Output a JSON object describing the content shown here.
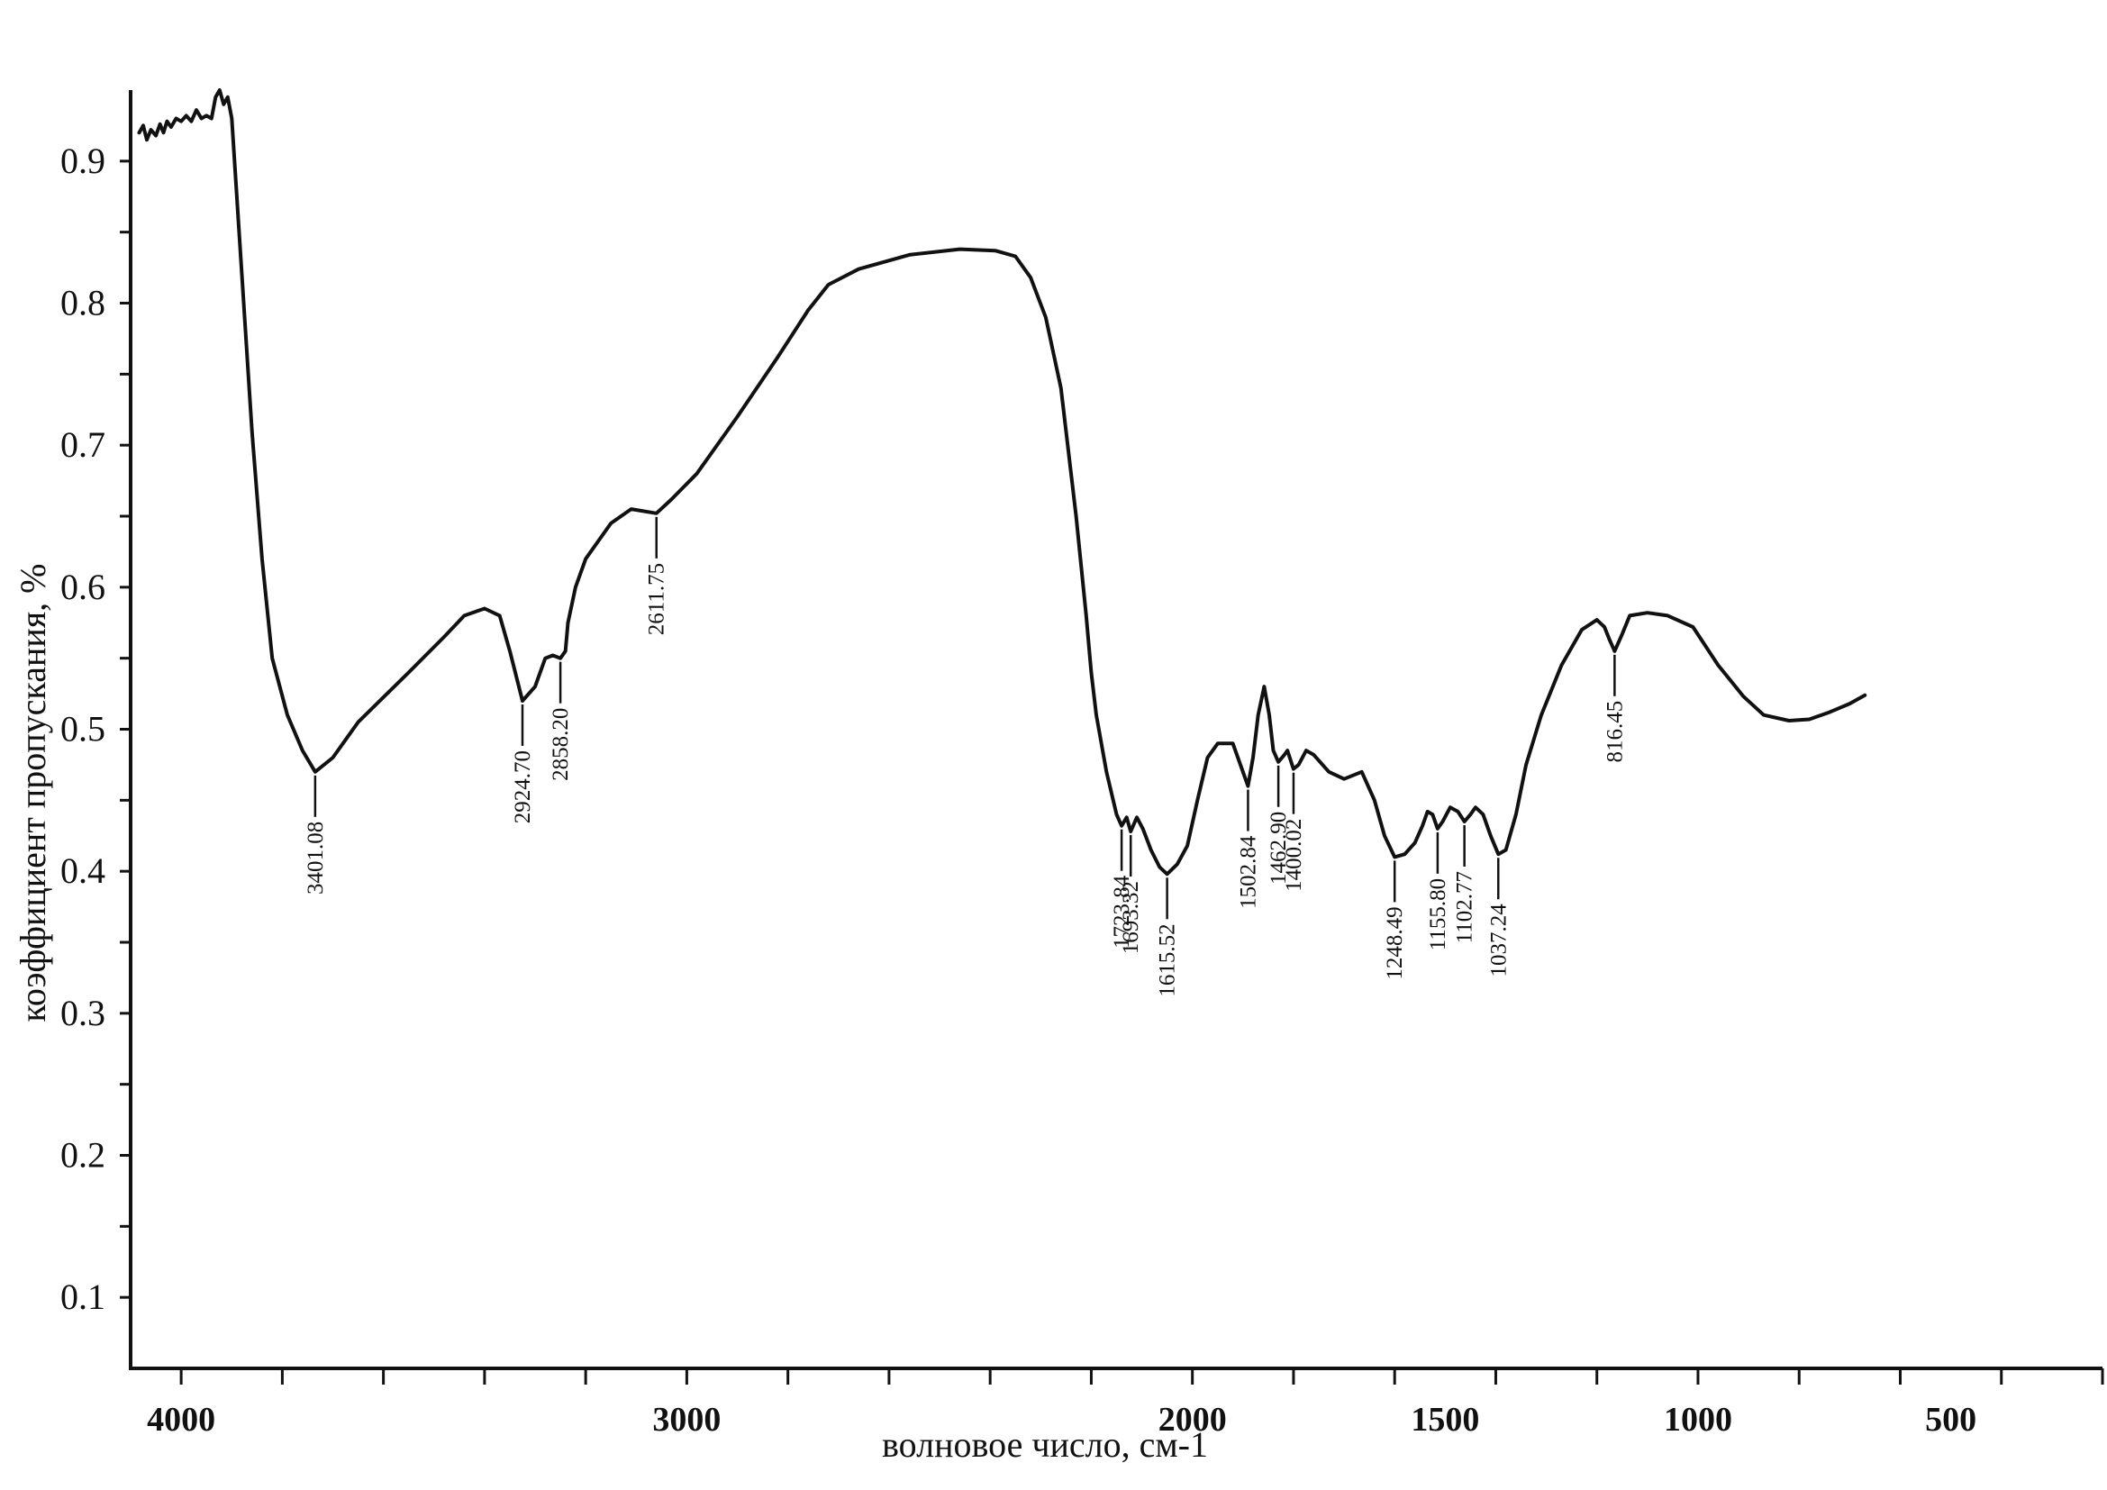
{
  "chart_data": {
    "type": "line",
    "title": "",
    "xlabel": "волновое число, см-1",
    "ylabel": "коэффициент пропускания, %",
    "xlim": [
      4100,
      200
    ],
    "ylim": [
      0.05,
      0.95
    ],
    "xticks": [
      {
        "value": 4000,
        "label": "4000"
      },
      {
        "value": 3000,
        "label": "3000"
      },
      {
        "value": 2000,
        "label": "2000"
      },
      {
        "value": 1500,
        "label": "1500"
      },
      {
        "value": 1000,
        "label": "1000"
      },
      {
        "value": 500,
        "label": "500"
      }
    ],
    "xminor": [
      4000,
      3800,
      3600,
      3400,
      3200,
      3000,
      2800,
      2600,
      2400,
      2200,
      2000,
      1800,
      1600,
      1400,
      1200,
      1000,
      800,
      600,
      400,
      200
    ],
    "yticks": [
      {
        "value": 0.1,
        "label": "0.1"
      },
      {
        "value": 0.2,
        "label": "0.2"
      },
      {
        "value": 0.3,
        "label": "0.3"
      },
      {
        "value": 0.4,
        "label": "0.4"
      },
      {
        "value": 0.5,
        "label": "0.5"
      },
      {
        "value": 0.6,
        "label": "0.6"
      },
      {
        "value": 0.7,
        "label": "0.7"
      },
      {
        "value": 0.8,
        "label": "0.8"
      },
      {
        "value": 0.9,
        "label": "0.9"
      }
    ],
    "yminor": [
      0.1,
      0.15,
      0.2,
      0.25,
      0.3,
      0.35,
      0.4,
      0.45,
      0.5,
      0.55,
      0.6,
      0.65,
      0.7,
      0.75,
      0.8,
      0.85,
      0.9
    ],
    "grid": false,
    "series": [
      {
        "color": "#111111",
        "points": [
          [
            4083,
            0.92
          ],
          [
            4075,
            0.925
          ],
          [
            4068,
            0.915
          ],
          [
            4060,
            0.922
          ],
          [
            4050,
            0.918
          ],
          [
            4042,
            0.926
          ],
          [
            4035,
            0.92
          ],
          [
            4028,
            0.928
          ],
          [
            4020,
            0.924
          ],
          [
            4010,
            0.93
          ],
          [
            4000,
            0.928
          ],
          [
            3990,
            0.932
          ],
          [
            3980,
            0.928
          ],
          [
            3970,
            0.936
          ],
          [
            3960,
            0.93
          ],
          [
            3950,
            0.932
          ],
          [
            3940,
            0.93
          ],
          [
            3932,
            0.945
          ],
          [
            3924,
            0.95
          ],
          [
            3916,
            0.94
          ],
          [
            3908,
            0.945
          ],
          [
            3900,
            0.93
          ],
          [
            3880,
            0.82
          ],
          [
            3860,
            0.71
          ],
          [
            3840,
            0.62
          ],
          [
            3820,
            0.55
          ],
          [
            3790,
            0.51
          ],
          [
            3760,
            0.485
          ],
          [
            3735,
            0.47
          ],
          [
            3700,
            0.48
          ],
          [
            3650,
            0.505
          ],
          [
            3550,
            0.54
          ],
          [
            3480,
            0.565
          ],
          [
            3440,
            0.58
          ],
          [
            3400,
            0.585
          ],
          [
            3370,
            0.58
          ],
          [
            3350,
            0.555
          ],
          [
            3325,
            0.52
          ],
          [
            3300,
            0.53
          ],
          [
            3280,
            0.55
          ],
          [
            3265,
            0.552
          ],
          [
            3250,
            0.55
          ],
          [
            3240,
            0.555
          ],
          [
            3235,
            0.575
          ],
          [
            3220,
            0.6
          ],
          [
            3200,
            0.62
          ],
          [
            3150,
            0.645
          ],
          [
            3110,
            0.655
          ],
          [
            3060,
            0.652
          ],
          [
            3030,
            0.662
          ],
          [
            2980,
            0.68
          ],
          [
            2900,
            0.72
          ],
          [
            2820,
            0.762
          ],
          [
            2760,
            0.795
          ],
          [
            2720,
            0.813
          ],
          [
            2660,
            0.824
          ],
          [
            2560,
            0.834
          ],
          [
            2460,
            0.838
          ],
          [
            2390,
            0.837
          ],
          [
            2350,
            0.833
          ],
          [
            2320,
            0.818
          ],
          [
            2290,
            0.79
          ],
          [
            2260,
            0.74
          ],
          [
            2230,
            0.65
          ],
          [
            2210,
            0.58
          ],
          [
            2200,
            0.54
          ],
          [
            2190,
            0.51
          ],
          [
            2170,
            0.47
          ],
          [
            2150,
            0.44
          ],
          [
            2140,
            0.432
          ],
          [
            2130,
            0.438
          ],
          [
            2122,
            0.428
          ],
          [
            2110,
            0.438
          ],
          [
            2098,
            0.43
          ],
          [
            2082,
            0.415
          ],
          [
            2065,
            0.403
          ],
          [
            2050,
            0.398
          ],
          [
            2030,
            0.405
          ],
          [
            2010,
            0.418
          ],
          [
            1990,
            0.45
          ],
          [
            1970,
            0.48
          ],
          [
            1950,
            0.49
          ],
          [
            1920,
            0.49
          ],
          [
            1905,
            0.475
          ],
          [
            1890,
            0.46
          ],
          [
            1880,
            0.48
          ],
          [
            1870,
            0.51
          ],
          [
            1858,
            0.53
          ],
          [
            1848,
            0.51
          ],
          [
            1840,
            0.485
          ],
          [
            1830,
            0.477
          ],
          [
            1818,
            0.482
          ],
          [
            1812,
            0.485
          ],
          [
            1800,
            0.472
          ],
          [
            1790,
            0.475
          ],
          [
            1775,
            0.485
          ],
          [
            1760,
            0.482
          ],
          [
            1730,
            0.47
          ],
          [
            1700,
            0.465
          ],
          [
            1665,
            0.47
          ],
          [
            1640,
            0.45
          ],
          [
            1620,
            0.425
          ],
          [
            1600,
            0.41
          ],
          [
            1580,
            0.412
          ],
          [
            1560,
            0.42
          ],
          [
            1545,
            0.432
          ],
          [
            1535,
            0.442
          ],
          [
            1525,
            0.44
          ],
          [
            1515,
            0.43
          ],
          [
            1505,
            0.435
          ],
          [
            1490,
            0.445
          ],
          [
            1475,
            0.442
          ],
          [
            1462,
            0.435
          ],
          [
            1450,
            0.44
          ],
          [
            1440,
            0.445
          ],
          [
            1425,
            0.44
          ],
          [
            1410,
            0.425
          ],
          [
            1395,
            0.412
          ],
          [
            1380,
            0.415
          ],
          [
            1360,
            0.44
          ],
          [
            1340,
            0.475
          ],
          [
            1310,
            0.51
          ],
          [
            1270,
            0.545
          ],
          [
            1230,
            0.57
          ],
          [
            1200,
            0.577
          ],
          [
            1185,
            0.572
          ],
          [
            1175,
            0.563
          ],
          [
            1165,
            0.555
          ],
          [
            1150,
            0.567
          ],
          [
            1135,
            0.58
          ],
          [
            1100,
            0.582
          ],
          [
            1060,
            0.58
          ],
          [
            1010,
            0.572
          ],
          [
            960,
            0.545
          ],
          [
            910,
            0.523
          ],
          [
            870,
            0.51
          ],
          [
            820,
            0.506
          ],
          [
            780,
            0.507
          ],
          [
            740,
            0.512
          ],
          [
            700,
            0.518
          ],
          [
            670,
            0.524
          ]
        ]
      }
    ],
    "annotations": [
      {
        "label": "3401.08",
        "x": 3735,
        "y": 0.47
      },
      {
        "label": "2924.70",
        "x": 3325,
        "y": 0.52
      },
      {
        "label": "2858.20",
        "x": 3250,
        "y": 0.55
      },
      {
        "label": "2611.75",
        "x": 3060,
        "y": 0.652
      },
      {
        "label": "1723.84",
        "x": 2140,
        "y": 0.432
      },
      {
        "label": "1693.32",
        "x": 2122,
        "y": 0.428
      },
      {
        "label": "1615.52",
        "x": 2050,
        "y": 0.398
      },
      {
        "label": "1502.84",
        "x": 1890,
        "y": 0.46
      },
      {
        "label": "1462.90",
        "x": 1830,
        "y": 0.477
      },
      {
        "label": "1400.02",
        "x": 1800,
        "y": 0.472
      },
      {
        "label": "1248.49",
        "x": 1600,
        "y": 0.41
      },
      {
        "label": "1155.80",
        "x": 1515,
        "y": 0.43
      },
      {
        "label": "1102.77",
        "x": 1462,
        "y": 0.435
      },
      {
        "label": "1037.24",
        "x": 1395,
        "y": 0.412
      },
      {
        "label": "816.45",
        "x": 1165,
        "y": 0.555
      }
    ]
  }
}
